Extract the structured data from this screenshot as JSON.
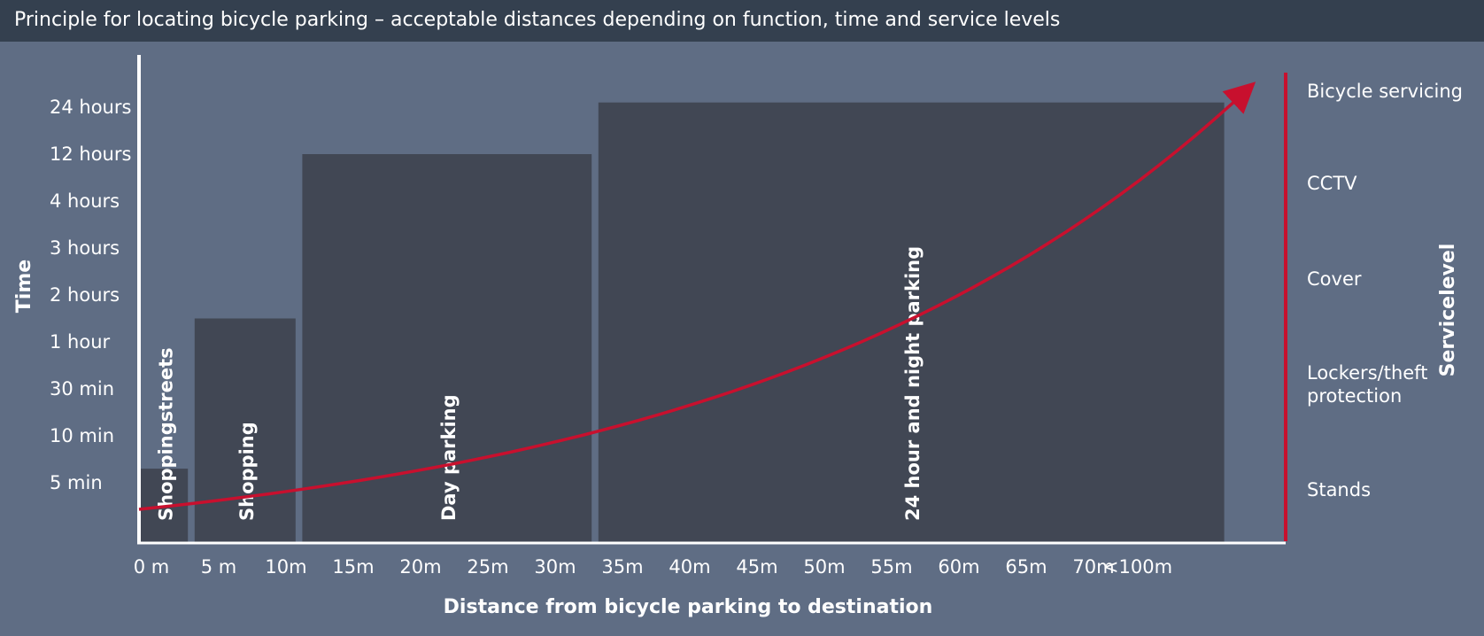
{
  "title": "Principle for locating bicycle parking – acceptable distances depending on function, time and service levels",
  "chart_data": {
    "type": "bar",
    "xlabel": "Distance from bicycle parking to destination",
    "ylabel": "Time",
    "right_axis_label": "Servicelevel",
    "x_ticks": [
      "0 m",
      "5 m",
      "10m",
      "15m",
      "20m",
      "25m",
      "30m",
      "35m",
      "40m",
      "45m",
      "50m",
      "55m",
      "60m",
      "65m",
      "70m",
      "<100m"
    ],
    "y_ticks": [
      "5 min",
      "10 min",
      "30 min",
      "1 hour",
      "2 hours",
      "3 hours",
      "4 hours",
      "12 hours",
      "24 hours"
    ],
    "service_levels": [
      "Stands",
      "Lockers/theft protection",
      "Cover",
      "CCTV",
      "Bicycle servicing"
    ],
    "categories": [
      "Shoppingstreets",
      "Shopping",
      "Day parking",
      "24 hour and night parking"
    ],
    "bars": [
      {
        "label": "Shoppingstreets",
        "x_start": 0,
        "x_end": 3.5,
        "time_level": 1.3
      },
      {
        "label": "Shopping",
        "x_start": 4,
        "x_end": 11.5,
        "time_level": 4.5
      },
      {
        "label": "Day parking",
        "x_start": 12,
        "x_end": 33.5,
        "time_level": 8.0
      },
      {
        "label": "24 hour and night parking",
        "x_start": 34,
        "x_end": 80.5,
        "time_level": 9.1
      }
    ],
    "curve": {
      "from": "Stands",
      "to": "Bicycle servicing",
      "x_end": 82.5,
      "direction": "increasing"
    },
    "colors": {
      "background": "#5f6d84",
      "title_bar": "#34404f",
      "bars": "#414754",
      "curve": "#c8102e",
      "axis": "#ffffff"
    },
    "grid": false,
    "legend": "none"
  }
}
